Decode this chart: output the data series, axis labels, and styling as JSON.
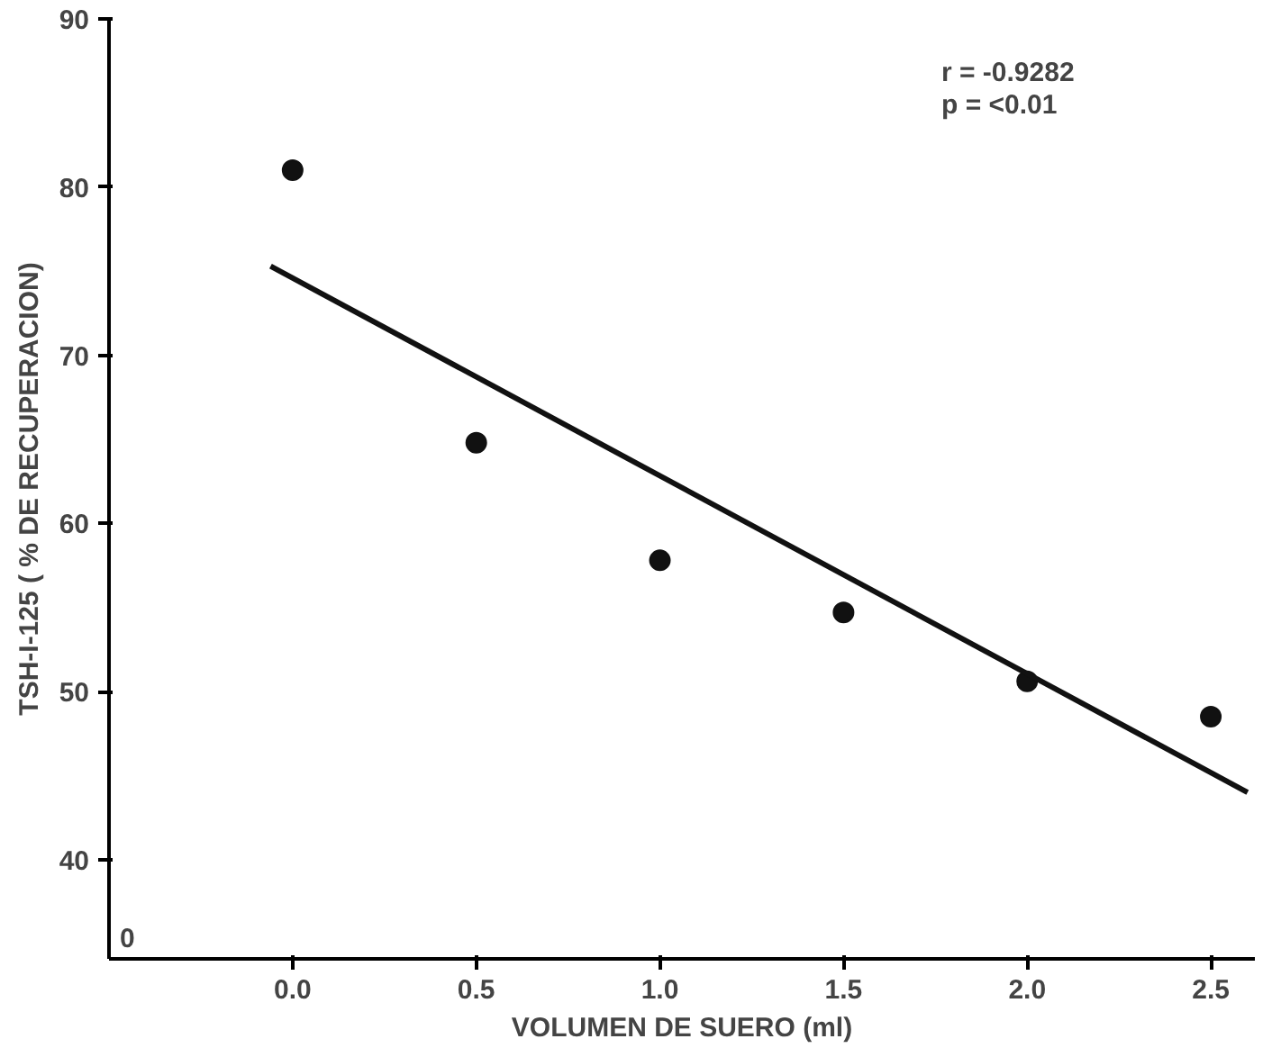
{
  "chart_data": {
    "type": "scatter",
    "xlabel": "VOLUMEN DE SUERO (ml)",
    "ylabel": "TSH-I-125 ( % DE RECUPERACION)",
    "x": [
      0.0,
      0.5,
      1.0,
      1.5,
      2.0,
      2.5
    ],
    "series": [
      {
        "color": "#111111",
        "values": [
          81,
          64.8,
          57.8,
          54.7,
          50.6,
          48.5
        ],
        "marker": "circle"
      },
      {
        "type": "line",
        "color": "#111111",
        "x": [
          -0.06,
          2.6
        ],
        "values": [
          75.3,
          44.0
        ],
        "line_style": "solid"
      }
    ],
    "xlim": [
      -0.5,
      2.62
    ],
    "ylim": [
      34.1,
      90
    ],
    "xticks": [
      {
        "value": 0,
        "label": "0.0"
      },
      0.5,
      {
        "value": 1,
        "label": "1.0"
      },
      1.5,
      {
        "value": 2,
        "label": "2.0"
      },
      2.5
    ],
    "yticks": [
      40,
      50,
      60,
      70,
      80,
      90
    ],
    "annotations": [
      "r = -0.9282",
      "p = <0.01",
      "0"
    ],
    "grid": false
  }
}
